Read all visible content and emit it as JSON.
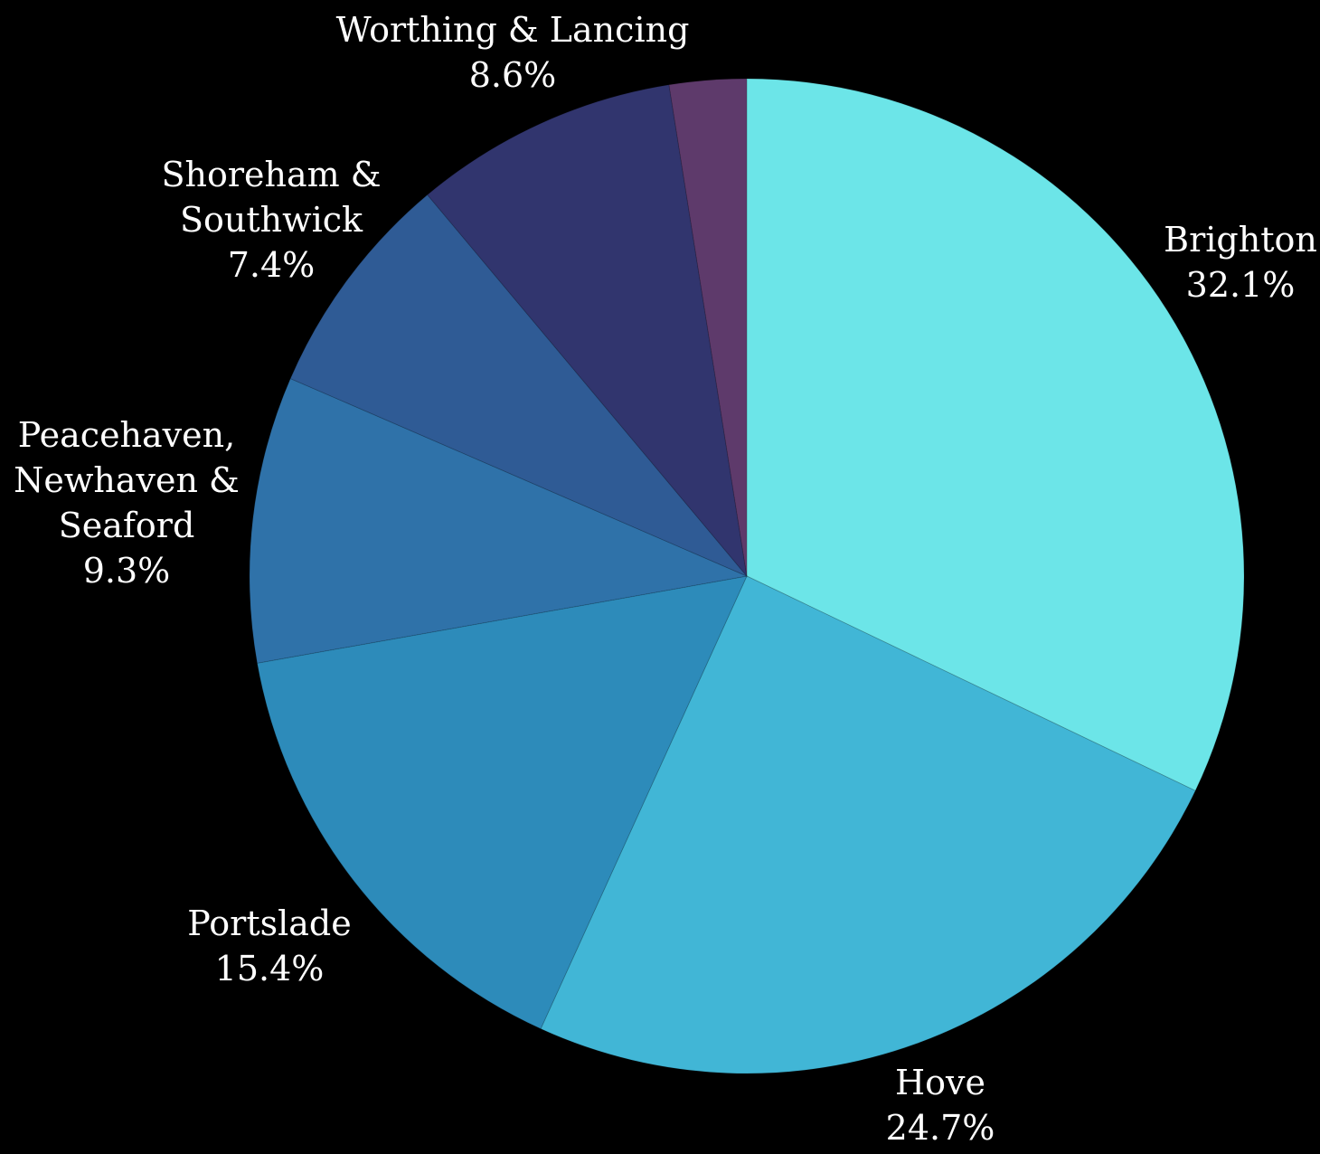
{
  "chart_data": {
    "type": "pie",
    "title": "",
    "start_angle_deg": 0,
    "direction": "clockwise",
    "background": "#000000",
    "label_color": "#ffffff",
    "slices": [
      {
        "name": "Brighton",
        "label_lines": [
          "Brighton"
        ],
        "value": 32.1,
        "value_label": "32.1%",
        "color": "#6ce5e8"
      },
      {
        "name": "Hove",
        "label_lines": [
          "Hove"
        ],
        "value": 24.7,
        "value_label": "24.7%",
        "color": "#41b6d6"
      },
      {
        "name": "Portslade",
        "label_lines": [
          "Portslade"
        ],
        "value": 15.4,
        "value_label": "15.4%",
        "color": "#2d8bba"
      },
      {
        "name": "Peacehaven, Newhaven & Seaford",
        "label_lines": [
          "Peacehaven,",
          "Newhaven &",
          "Seaford"
        ],
        "value": 9.3,
        "value_label": "9.3%",
        "color": "#2f72a9"
      },
      {
        "name": "Shoreham & Southwick",
        "label_lines": [
          "Shoreham &",
          "Southwick"
        ],
        "value": 7.4,
        "value_label": "7.4%",
        "color": "#2f5b95"
      },
      {
        "name": "Worthing & Lancing",
        "label_lines": [
          "Worthing & Lancing"
        ],
        "value": 8.6,
        "value_label": "8.6%",
        "color": "#31356e"
      },
      {
        "name": "",
        "label_lines": [],
        "value": 2.5,
        "value_label": "",
        "color": "#5e3a6b"
      }
    ]
  }
}
